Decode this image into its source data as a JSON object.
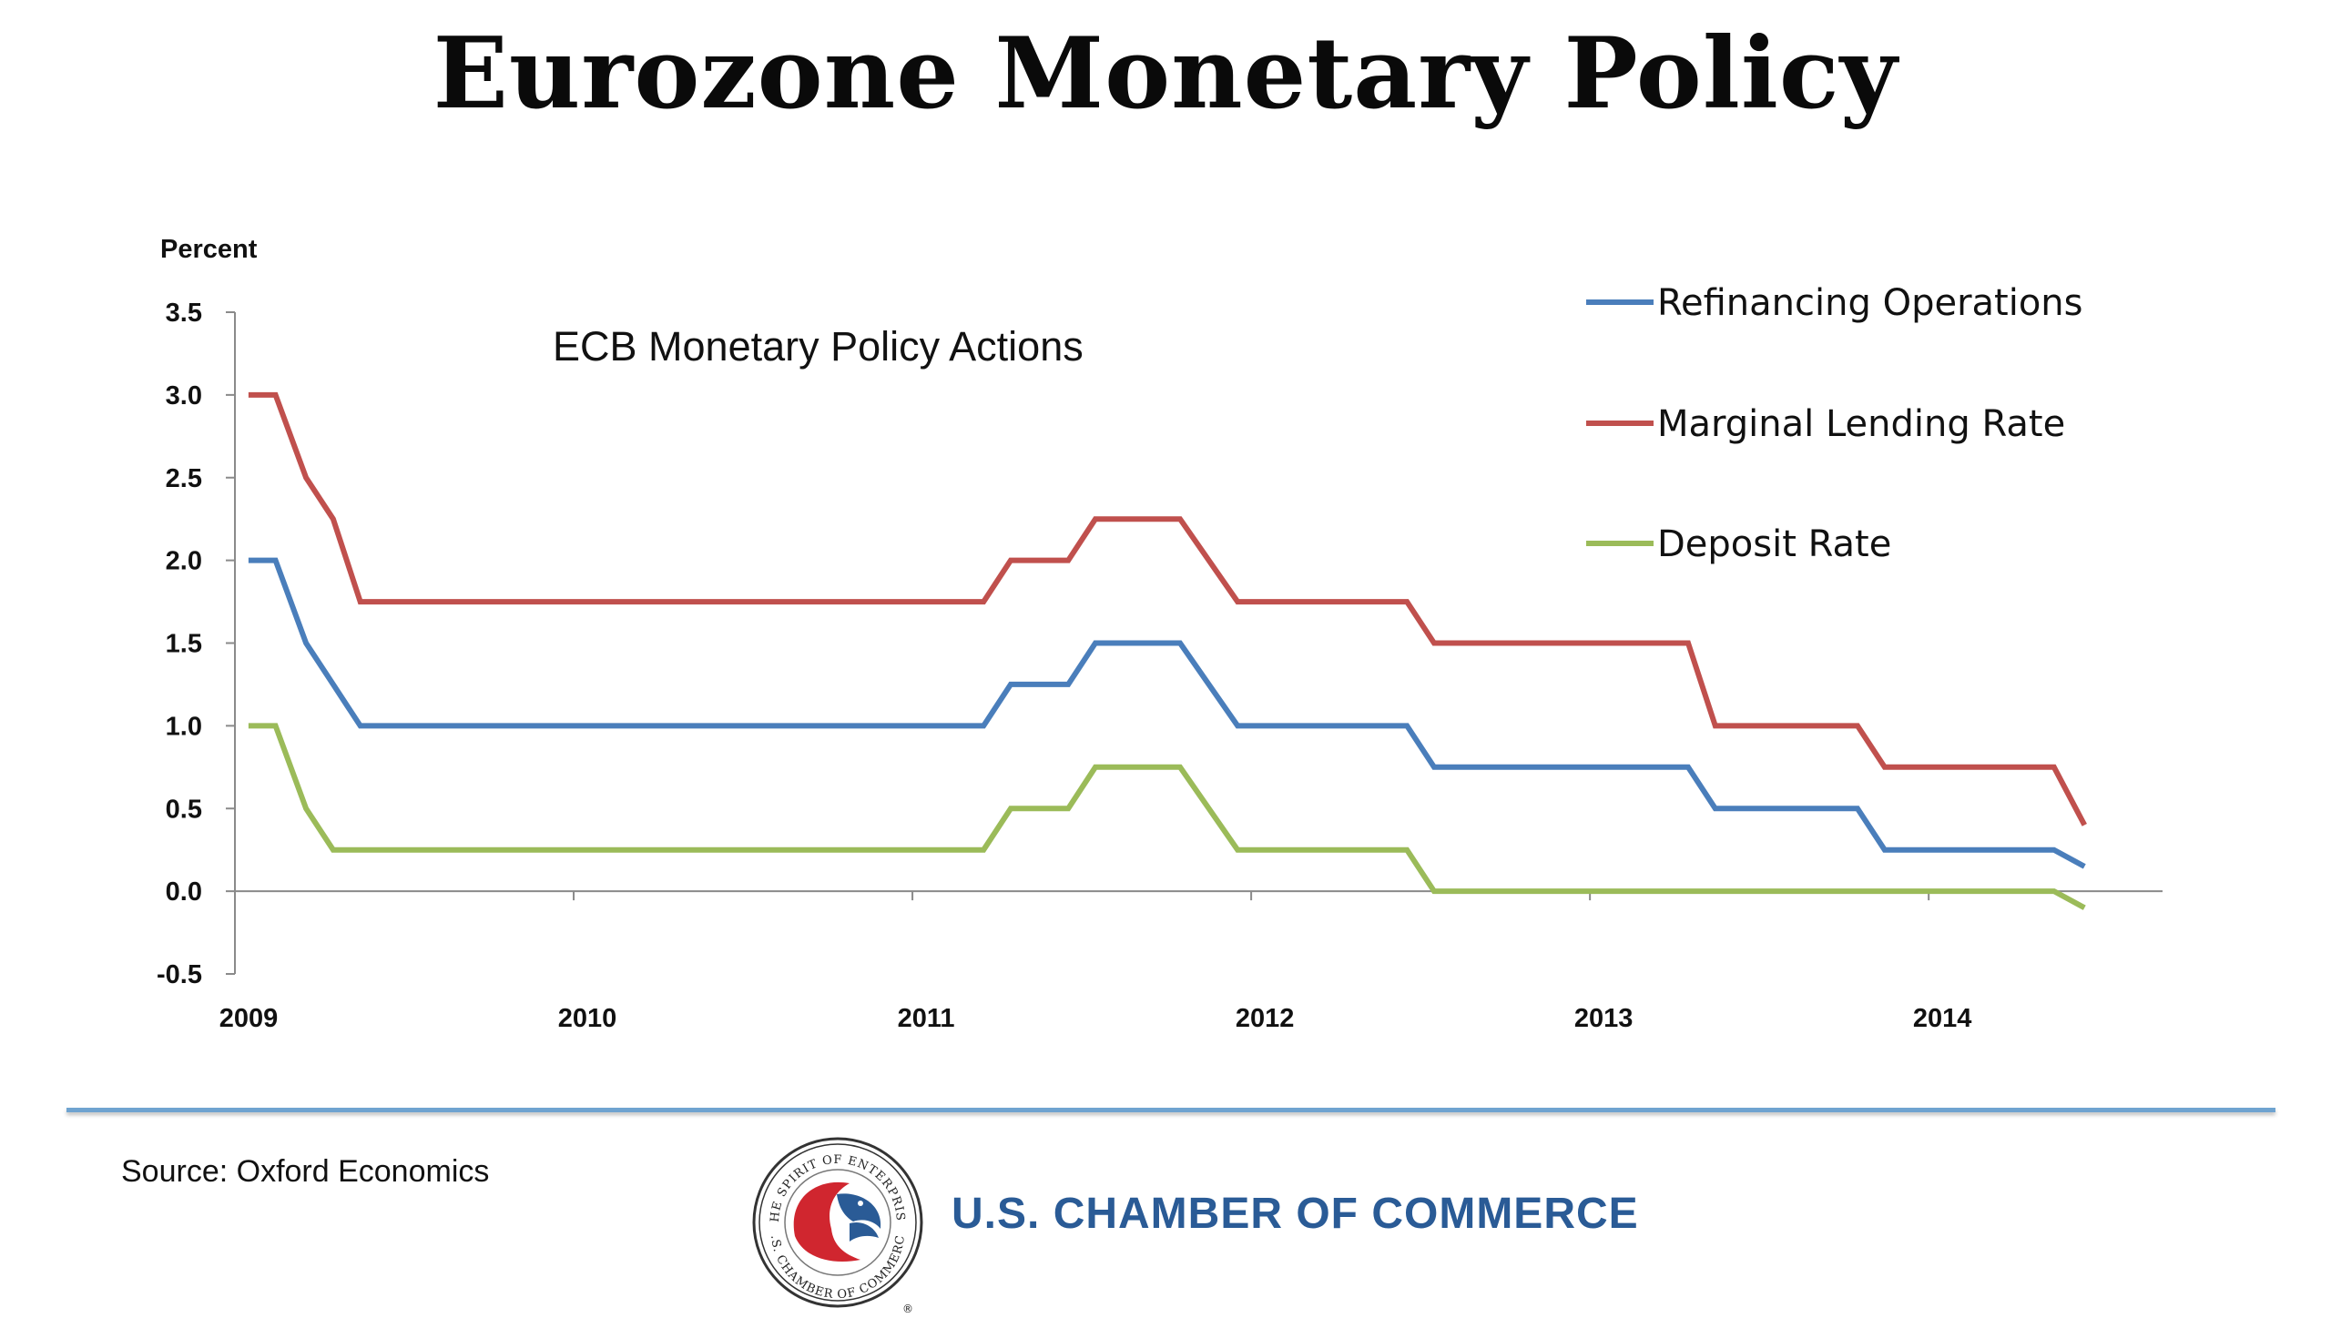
{
  "page": {
    "title": "Eurozone Monetary Policy",
    "source": "Source: Oxford Economics",
    "brand": "U.S. CHAMBER OF COMMERCE",
    "seal": {
      "top_text": "THE SPIRIT OF ENTERPRISE",
      "bottom_text": "U.S. CHAMBER OF COMMERCE",
      "registered_mark": "®"
    }
  },
  "chart_data": {
    "type": "line",
    "title": "ECB Monetary Policy Actions",
    "ylabel": "Percent",
    "xlabel": "",
    "ylim": [
      -0.5,
      3.5
    ],
    "yticks": [
      "3.5",
      "3.0",
      "2.5",
      "2.0",
      "1.5",
      "1.0",
      "0.5",
      "0.0",
      "-0.5"
    ],
    "yticks_values": [
      3.5,
      3.0,
      2.5,
      2.0,
      1.5,
      1.0,
      0.5,
      0.0,
      -0.5
    ],
    "xlim": [
      2009.0,
      2014.65
    ],
    "xticks": [
      "2009",
      "2010",
      "2011",
      "2012",
      "2013",
      "2014"
    ],
    "xticks_values": [
      2009,
      2010,
      2011,
      2012,
      2013,
      2014
    ],
    "legend_position": "top-right",
    "grid": false,
    "series": [
      {
        "name": "Refinancing Operations",
        "color": "#4a7ebb",
        "points": [
          [
            2009.04,
            2.0
          ],
          [
            2009.12,
            2.0
          ],
          [
            2009.21,
            1.5
          ],
          [
            2009.29,
            1.25
          ],
          [
            2009.37,
            1.0
          ],
          [
            2011.21,
            1.0
          ],
          [
            2011.29,
            1.25
          ],
          [
            2011.46,
            1.25
          ],
          [
            2011.54,
            1.5
          ],
          [
            2011.79,
            1.5
          ],
          [
            2011.96,
            1.0
          ],
          [
            2012.46,
            1.0
          ],
          [
            2012.54,
            0.75
          ],
          [
            2013.29,
            0.75
          ],
          [
            2013.37,
            0.5
          ],
          [
            2013.79,
            0.5
          ],
          [
            2013.87,
            0.25
          ],
          [
            2014.37,
            0.25
          ],
          [
            2014.46,
            0.15
          ]
        ]
      },
      {
        "name": "Marginal Lending Rate",
        "color": "#c0504d",
        "points": [
          [
            2009.04,
            3.0
          ],
          [
            2009.12,
            3.0
          ],
          [
            2009.21,
            2.5
          ],
          [
            2009.29,
            2.25
          ],
          [
            2009.37,
            1.75
          ],
          [
            2011.21,
            1.75
          ],
          [
            2011.29,
            2.0
          ],
          [
            2011.46,
            2.0
          ],
          [
            2011.54,
            2.25
          ],
          [
            2011.79,
            2.25
          ],
          [
            2011.96,
            1.75
          ],
          [
            2012.46,
            1.75
          ],
          [
            2012.54,
            1.5
          ],
          [
            2013.29,
            1.5
          ],
          [
            2013.37,
            1.0
          ],
          [
            2013.79,
            1.0
          ],
          [
            2013.87,
            0.75
          ],
          [
            2014.37,
            0.75
          ],
          [
            2014.46,
            0.4
          ]
        ]
      },
      {
        "name": "Deposit Rate",
        "color": "#9bbb59",
        "points": [
          [
            2009.04,
            1.0
          ],
          [
            2009.12,
            1.0
          ],
          [
            2009.21,
            0.5
          ],
          [
            2009.29,
            0.25
          ],
          [
            2011.21,
            0.25
          ],
          [
            2011.29,
            0.5
          ],
          [
            2011.46,
            0.5
          ],
          [
            2011.54,
            0.75
          ],
          [
            2011.79,
            0.75
          ],
          [
            2011.96,
            0.25
          ],
          [
            2012.46,
            0.25
          ],
          [
            2012.54,
            0.0
          ],
          [
            2014.37,
            0.0
          ],
          [
            2014.46,
            -0.1
          ]
        ]
      }
    ]
  }
}
